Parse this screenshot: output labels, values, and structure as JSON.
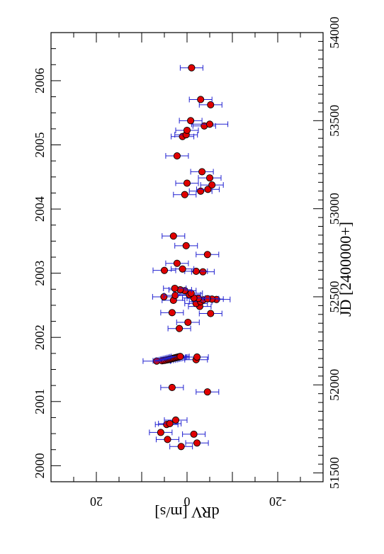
{
  "chart_data": {
    "type": "scatter",
    "title": "",
    "orientation": "rotated-90-cw",
    "xlabel": "JD [2400000+]",
    "ylabel": "dRV [m/s]",
    "year_axis_label": "",
    "xlim": [
      51450,
      54000
    ],
    "ylim": [
      -30,
      30
    ],
    "year_lim": [
      1999.75,
      2006.75
    ],
    "x_tick_values": [
      51500,
      52000,
      52500,
      53000,
      53500,
      54000
    ],
    "x_tick_labels": [
      "51500",
      "52000",
      "52500",
      "53000",
      "53500",
      "54000"
    ],
    "y_tick_values": [
      20,
      0,
      -20
    ],
    "y_tick_labels": [
      "20",
      "0",
      "-20"
    ],
    "year_tick_values": [
      2000,
      2001,
      2002,
      2003,
      2004,
      2005,
      2006
    ],
    "year_tick_labels": [
      "2000",
      "2001",
      "2002",
      "2003",
      "2004",
      "2005",
      "2006"
    ],
    "marker_color": "#e00000",
    "errorbar_color": "#2020d0",
    "series": [
      {
        "points": [
          {
            "x": 51650,
            "y": 1.3,
            "err": 2.5
          },
          {
            "x": 51670,
            "y": -2.2,
            "err": 2.5
          },
          {
            "x": 51690,
            "y": 4.3,
            "err": 2.5
          },
          {
            "x": 51720,
            "y": -1.5,
            "err": 2.5
          },
          {
            "x": 51730,
            "y": 5.8,
            "err": 2.5
          },
          {
            "x": 51775,
            "y": 4.5,
            "err": 2.5
          },
          {
            "x": 51780,
            "y": 3.8,
            "err": 2.5
          },
          {
            "x": 51800,
            "y": 2.5,
            "err": 2.5
          },
          {
            "x": 51960,
            "y": -4.5,
            "err": 2.5
          },
          {
            "x": 51985,
            "y": 3.3,
            "err": 2.5
          },
          {
            "x": 52135,
            "y": 6.7,
            "err": 3.0
          },
          {
            "x": 52137,
            "y": 5.5,
            "err": 2.0
          },
          {
            "x": 52139,
            "y": 5.0,
            "err": 2.0
          },
          {
            "x": 52141,
            "y": 4.6,
            "err": 2.0
          },
          {
            "x": 52143,
            "y": 4.2,
            "err": 2.0
          },
          {
            "x": 52145,
            "y": 3.9,
            "err": 2.0
          },
          {
            "x": 52147,
            "y": 3.6,
            "err": 2.0
          },
          {
            "x": 52149,
            "y": 3.3,
            "err": 2.0
          },
          {
            "x": 52151,
            "y": 3.0,
            "err": 2.0
          },
          {
            "x": 52153,
            "y": 2.7,
            "err": 2.0
          },
          {
            "x": 52155,
            "y": 2.4,
            "err": 2.0
          },
          {
            "x": 52157,
            "y": 2.1,
            "err": 2.0
          },
          {
            "x": 52159,
            "y": 1.8,
            "err": 2.0
          },
          {
            "x": 52161,
            "y": 1.5,
            "err": 2.0
          },
          {
            "x": 52143,
            "y": -2.0,
            "err": 2.5
          },
          {
            "x": 52158,
            "y": -2.2,
            "err": 2.5
          },
          {
            "x": 52320,
            "y": 1.7,
            "err": 2.5
          },
          {
            "x": 52355,
            "y": -0.2,
            "err": 2.5
          },
          {
            "x": 52410,
            "y": 3.3,
            "err": 2.5
          },
          {
            "x": 52405,
            "y": -5.2,
            "err": 2.5
          },
          {
            "x": 52445,
            "y": -2.8,
            "err": 2.5
          },
          {
            "x": 52462,
            "y": -2.0,
            "err": 2.5
          },
          {
            "x": 52472,
            "y": -3.0,
            "err": 2.5
          },
          {
            "x": 52480,
            "y": 3.0,
            "err": 2.5
          },
          {
            "x": 52483,
            "y": -3.6,
            "err": 2.5
          },
          {
            "x": 52485,
            "y": -6.5,
            "err": 3.0
          },
          {
            "x": 52487,
            "y": -5.5,
            "err": 2.5
          },
          {
            "x": 52489,
            "y": -4.5,
            "err": 2.5
          },
          {
            "x": 52491,
            "y": -2.5,
            "err": 2.5
          },
          {
            "x": 52493,
            "y": -1.5,
            "err": 2.5
          },
          {
            "x": 52500,
            "y": 5.1,
            "err": 2.5
          },
          {
            "x": 52508,
            "y": 2.6,
            "err": 2.5
          },
          {
            "x": 52512,
            "y": -0.5,
            "err": 2.5
          },
          {
            "x": 52520,
            "y": -0.9,
            "err": 2.5
          },
          {
            "x": 52535,
            "y": 0.5,
            "err": 2.5
          },
          {
            "x": 52540,
            "y": 1.5,
            "err": 2.5
          },
          {
            "x": 52548,
            "y": 2.7,
            "err": 2.5
          },
          {
            "x": 52642,
            "y": -3.5,
            "err": 2.5
          },
          {
            "x": 52645,
            "y": -2.0,
            "err": 2.5
          },
          {
            "x": 52650,
            "y": 5.0,
            "err": 2.5
          },
          {
            "x": 52658,
            "y": 1.0,
            "err": 2.5
          },
          {
            "x": 52690,
            "y": 2.2,
            "err": 2.5
          },
          {
            "x": 52740,
            "y": -4.5,
            "err": 2.5
          },
          {
            "x": 52790,
            "y": 0.2,
            "err": 2.5
          },
          {
            "x": 52845,
            "y": 3.0,
            "err": 2.5
          },
          {
            "x": 53080,
            "y": 0.5,
            "err": 2.5
          },
          {
            "x": 53100,
            "y": -3.0,
            "err": 2.5
          },
          {
            "x": 53110,
            "y": -4.6,
            "err": 2.5
          },
          {
            "x": 53135,
            "y": -5.5,
            "err": 2.5
          },
          {
            "x": 53145,
            "y": 0.0,
            "err": 2.5
          },
          {
            "x": 53175,
            "y": -5.0,
            "err": 2.5
          },
          {
            "x": 53210,
            "y": -3.3,
            "err": 2.5
          },
          {
            "x": 53300,
            "y": 2.2,
            "err": 2.5
          },
          {
            "x": 53410,
            "y": 1.0,
            "err": 2.5
          },
          {
            "x": 53420,
            "y": 0.2,
            "err": 2.5
          },
          {
            "x": 53445,
            "y": 0.0,
            "err": 2.5
          },
          {
            "x": 53470,
            "y": -3.8,
            "err": 2.5
          },
          {
            "x": 53480,
            "y": -5.0,
            "err": 4.0
          },
          {
            "x": 53500,
            "y": -0.8,
            "err": 2.5
          },
          {
            "x": 53590,
            "y": -5.2,
            "err": 2.5
          },
          {
            "x": 53620,
            "y": -3.0,
            "err": 2.5
          },
          {
            "x": 53800,
            "y": -1.0,
            "err": 2.5
          }
        ]
      }
    ]
  }
}
